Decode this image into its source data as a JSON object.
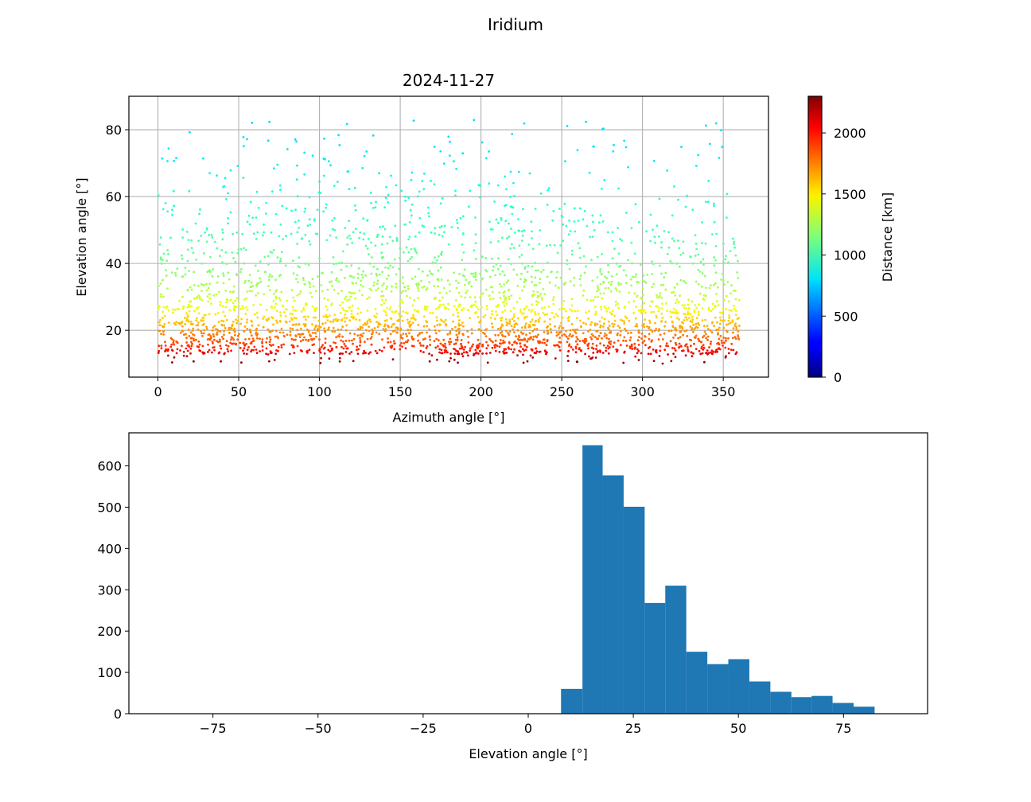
{
  "figure": {
    "suptitle": "Iridium"
  },
  "colors": {
    "hist_bar": "#1f77b4",
    "grid": "#b0b0b0",
    "colormap": "jet"
  },
  "chart_data": [
    {
      "type": "scatter",
      "title": "2024-11-27",
      "xlabel": "Azimuth angle [°]",
      "ylabel": "Elevation angle [°]",
      "xlim": [
        -18,
        378
      ],
      "ylim": [
        6,
        90
      ],
      "xticks": [
        "0",
        "50",
        "100",
        "150",
        "200",
        "250",
        "300",
        "350"
      ],
      "yticks": [
        "20",
        "40",
        "60",
        "80"
      ],
      "grid": true,
      "point_count_approx": 3000,
      "x_range": [
        0,
        360
      ],
      "y_range": [
        10,
        86.5
      ],
      "color_by": "distance_km",
      "colorbar": {
        "label": "Distance [km]",
        "range": [
          0,
          2300
        ],
        "ticks": [
          "0",
          "500",
          "1000",
          "1500",
          "2000"
        ]
      }
    },
    {
      "type": "bar",
      "subtype": "histogram",
      "xlabel": "Elevation angle [°]",
      "ylabel": "",
      "xlim": [
        -95,
        95
      ],
      "ylim": [
        0,
        680
      ],
      "xticks": [
        "−75",
        "−50",
        "−25",
        "0",
        "25",
        "50",
        "75"
      ],
      "yticks": [
        "0",
        "100",
        "200",
        "300",
        "400",
        "500",
        "600"
      ],
      "bin_edges": [
        -90,
        7.8,
        12.9,
        17.7,
        22.7,
        27.7,
        32.6,
        37.6,
        42.6,
        47.6,
        52.6,
        57.6,
        62.6,
        67.4,
        72.4,
        77.4,
        82.4,
        87.4
      ],
      "values": [
        0,
        60,
        650,
        577,
        501,
        268,
        310,
        150,
        120,
        132,
        78,
        53,
        40,
        43,
        26,
        17,
        1
      ]
    }
  ]
}
